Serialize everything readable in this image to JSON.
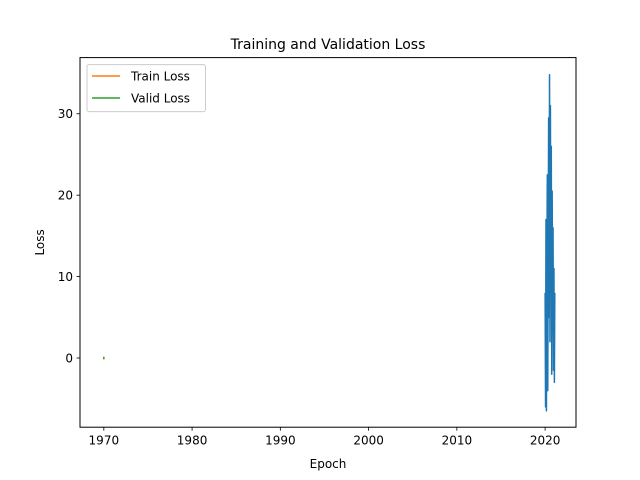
{
  "chart_data": {
    "type": "line",
    "title": "Training and Validation Loss",
    "xlabel": "Epoch",
    "ylabel": "Loss",
    "xlim": [
      1967.3,
      2023.5
    ],
    "ylim": [
      -8.5,
      36.9
    ],
    "xticks": [
      1970,
      1980,
      1990,
      2000,
      2010,
      2020
    ],
    "yticks": [
      0,
      10,
      20,
      30
    ],
    "grid": false,
    "legend_position": "upper-left",
    "series": [
      {
        "name": "Train Loss",
        "color": "#ff7f0e",
        "in_legend": true,
        "x": [
          1970.0
        ],
        "y": [
          0.0
        ]
      },
      {
        "name": "Valid Loss",
        "color": "#2ca02c",
        "in_legend": true,
        "x": [
          1970.0
        ],
        "y": [
          0.0
        ]
      },
      {
        "color": "#1f77b4",
        "in_legend": false,
        "x": [
          2020.0,
          2020.05,
          2020.1,
          2020.15,
          2020.2,
          2020.25,
          2020.3,
          2020.35,
          2020.4,
          2020.45,
          2020.5,
          2020.55,
          2020.6,
          2020.65,
          2020.7,
          2020.75,
          2020.8,
          2020.85,
          2020.9,
          2020.95,
          2021.0,
          2021.05,
          2021.1
        ],
        "y": [
          8.0,
          -6.0,
          17.0,
          -6.5,
          12.0,
          22.5,
          -4.0,
          14.0,
          29.5,
          5.0,
          34.8,
          2.0,
          31.0,
          8.0,
          26.0,
          -2.0,
          20.5,
          3.0,
          16.0,
          -1.5,
          11.0,
          -3.0,
          8.0
        ]
      }
    ]
  }
}
